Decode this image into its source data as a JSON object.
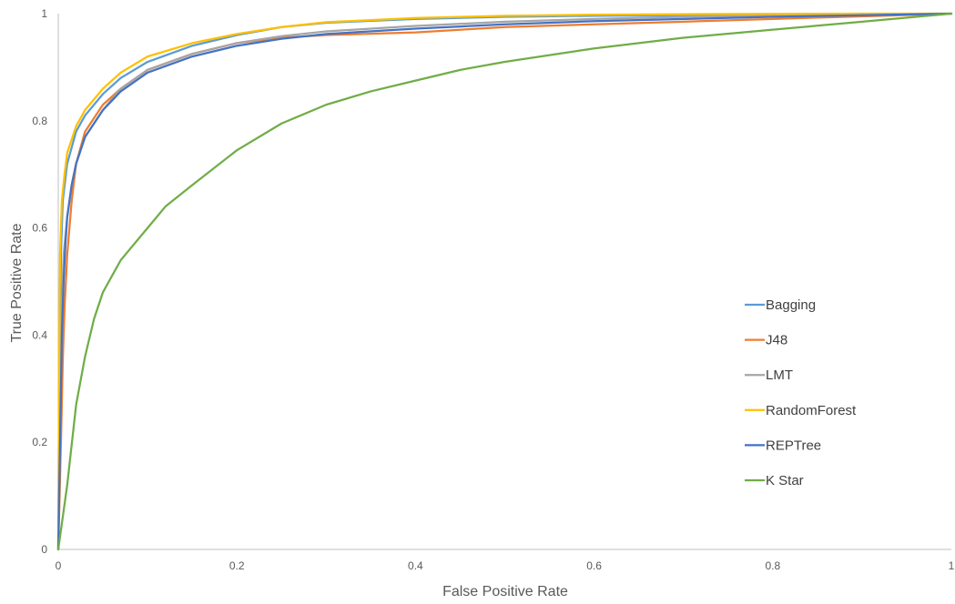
{
  "chart_data": {
    "type": "line",
    "title": "",
    "xlabel": "False Positive Rate",
    "ylabel": "True Positive Rate",
    "xlim": [
      0,
      1
    ],
    "ylim": [
      0,
      1
    ],
    "x_ticks": [
      0,
      0.2,
      0.4,
      0.6,
      0.8,
      1
    ],
    "x_tick_labels": [
      "0",
      "0.2",
      "0.4",
      "0.6",
      "0.8",
      "1"
    ],
    "y_ticks": [
      0,
      0.2,
      0.4,
      0.6,
      0.8,
      1
    ],
    "y_tick_labels": [
      "0",
      "0.2",
      "0.4",
      "0.6",
      "0.8",
      "1"
    ],
    "grid": false,
    "legend_position": "right",
    "series": [
      {
        "name": "Bagging",
        "color": "#5B9BD5",
        "x": [
          0,
          0.001,
          0.003,
          0.005,
          0.01,
          0.02,
          0.03,
          0.05,
          0.07,
          0.1,
          0.15,
          0.2,
          0.25,
          0.3,
          0.4,
          0.5,
          0.6,
          0.7,
          0.8,
          0.9,
          1.0
        ],
        "y": [
          0,
          0.3,
          0.55,
          0.65,
          0.72,
          0.78,
          0.81,
          0.85,
          0.88,
          0.91,
          0.94,
          0.96,
          0.975,
          0.983,
          0.99,
          0.994,
          0.996,
          0.997,
          0.998,
          0.999,
          1.0
        ]
      },
      {
        "name": "J48",
        "color": "#ED7D31",
        "x": [
          0,
          0.003,
          0.005,
          0.007,
          0.01,
          0.015,
          0.02,
          0.03,
          0.05,
          0.07,
          0.1,
          0.15,
          0.2,
          0.25,
          0.3,
          0.4,
          0.5,
          0.6,
          0.7,
          0.8,
          0.9,
          1.0
        ],
        "y": [
          0,
          0.2,
          0.35,
          0.45,
          0.55,
          0.65,
          0.72,
          0.78,
          0.83,
          0.86,
          0.895,
          0.925,
          0.945,
          0.955,
          0.96,
          0.965,
          0.975,
          0.98,
          0.985,
          0.99,
          0.995,
          1.0
        ]
      },
      {
        "name": "LMT",
        "color": "#A5A5A5",
        "x": [
          0,
          0.002,
          0.004,
          0.006,
          0.01,
          0.015,
          0.02,
          0.03,
          0.05,
          0.07,
          0.1,
          0.15,
          0.2,
          0.25,
          0.3,
          0.4,
          0.5,
          0.6,
          0.7,
          0.8,
          0.9,
          1.0
        ],
        "y": [
          0,
          0.3,
          0.45,
          0.55,
          0.62,
          0.68,
          0.72,
          0.77,
          0.82,
          0.86,
          0.895,
          0.925,
          0.945,
          0.958,
          0.967,
          0.977,
          0.985,
          0.99,
          0.994,
          0.997,
          0.999,
          1.0
        ]
      },
      {
        "name": "RandomForest",
        "color": "#FFC000",
        "x": [
          0,
          0.001,
          0.002,
          0.004,
          0.007,
          0.01,
          0.02,
          0.03,
          0.05,
          0.07,
          0.1,
          0.15,
          0.2,
          0.25,
          0.3,
          0.4,
          0.5,
          0.6,
          0.7,
          0.8,
          0.9,
          1.0
        ],
        "y": [
          0,
          0.35,
          0.55,
          0.65,
          0.7,
          0.74,
          0.79,
          0.82,
          0.86,
          0.89,
          0.92,
          0.945,
          0.962,
          0.975,
          0.984,
          0.992,
          0.996,
          0.998,
          0.999,
          0.9995,
          1.0,
          1.0
        ]
      },
      {
        "name": "REPTree",
        "color": "#4472C4",
        "x": [
          0,
          0.002,
          0.004,
          0.006,
          0.008,
          0.01,
          0.015,
          0.02,
          0.03,
          0.05,
          0.07,
          0.1,
          0.15,
          0.2,
          0.25,
          0.3,
          0.4,
          0.5,
          0.6,
          0.7,
          0.8,
          0.9,
          1.0
        ],
        "y": [
          0,
          0.2,
          0.4,
          0.5,
          0.57,
          0.62,
          0.68,
          0.72,
          0.77,
          0.82,
          0.855,
          0.89,
          0.92,
          0.94,
          0.953,
          0.962,
          0.972,
          0.98,
          0.986,
          0.99,
          0.994,
          0.997,
          1.0
        ]
      },
      {
        "name": "K Star",
        "color": "#70AD47",
        "x": [
          0,
          0.01,
          0.02,
          0.03,
          0.04,
          0.05,
          0.07,
          0.1,
          0.12,
          0.15,
          0.2,
          0.25,
          0.3,
          0.35,
          0.4,
          0.45,
          0.5,
          0.6,
          0.7,
          0.8,
          0.9,
          1.0
        ],
        "y": [
          0,
          0.12,
          0.27,
          0.36,
          0.43,
          0.48,
          0.54,
          0.6,
          0.64,
          0.68,
          0.745,
          0.795,
          0.83,
          0.855,
          0.875,
          0.895,
          0.91,
          0.935,
          0.955,
          0.97,
          0.985,
          1.0
        ]
      }
    ]
  }
}
